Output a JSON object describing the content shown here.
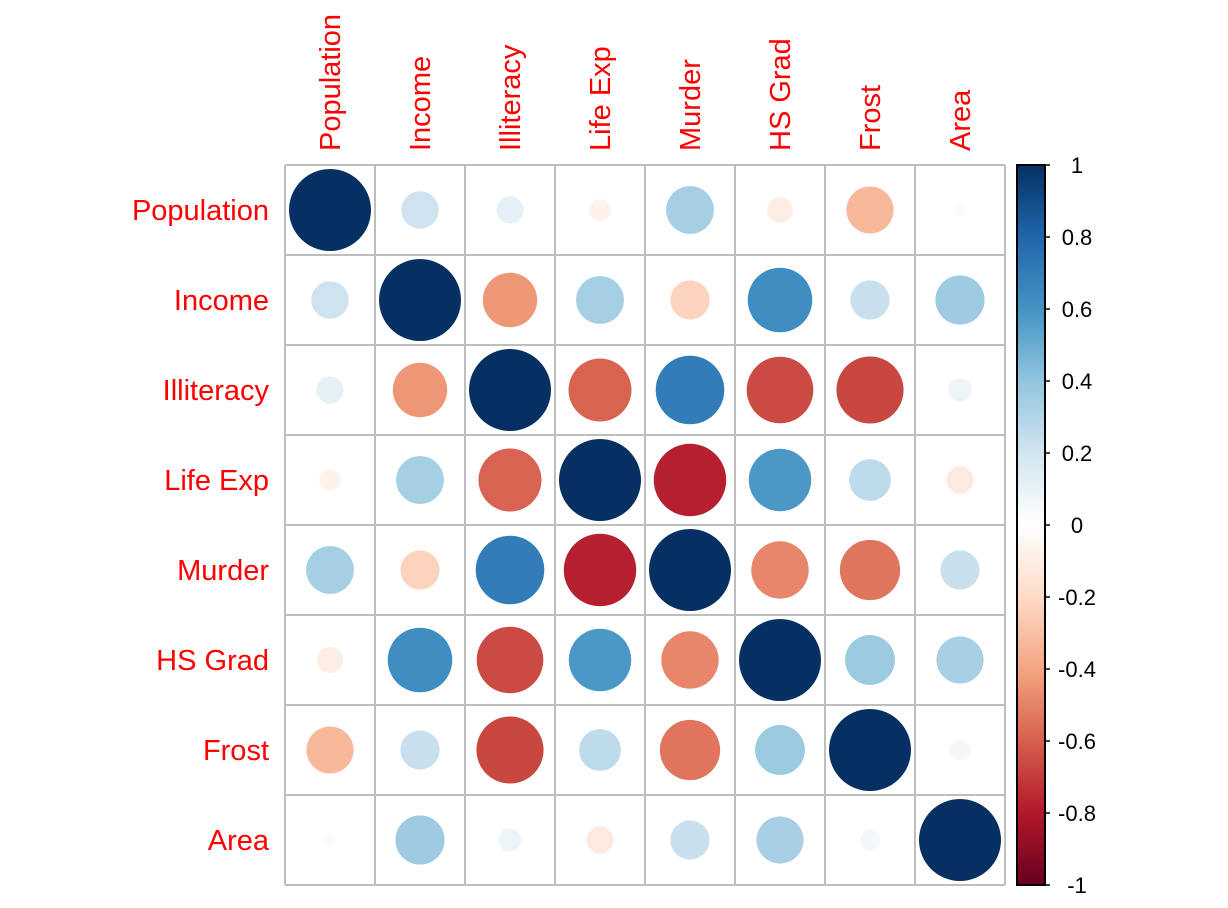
{
  "chart_data": {
    "type": "heatmap",
    "subtype": "correlation-circle",
    "title": "",
    "variables": [
      "Population",
      "Income",
      "Illiteracy",
      "Life Exp",
      "Murder",
      "HS Grad",
      "Frost",
      "Area"
    ],
    "matrix": [
      [
        1.0,
        0.21,
        0.11,
        -0.07,
        0.34,
        -0.1,
        -0.33,
        0.02
      ],
      [
        0.21,
        1.0,
        -0.44,
        0.34,
        -0.23,
        0.62,
        0.23,
        0.36
      ],
      [
        0.11,
        -0.44,
        1.0,
        -0.59,
        0.7,
        -0.66,
        -0.67,
        0.08
      ],
      [
        -0.07,
        0.34,
        -0.59,
        1.0,
        -0.78,
        0.58,
        0.26,
        -0.11
      ],
      [
        0.34,
        -0.23,
        0.7,
        -0.78,
        1.0,
        -0.49,
        -0.54,
        0.23
      ],
      [
        -0.1,
        0.62,
        -0.66,
        0.58,
        -0.49,
        1.0,
        0.37,
        0.33
      ],
      [
        -0.33,
        0.23,
        -0.67,
        0.26,
        -0.54,
        0.37,
        1.0,
        0.06
      ],
      [
        0.02,
        0.36,
        0.08,
        -0.11,
        0.23,
        0.33,
        0.06,
        1.0
      ]
    ],
    "colorbar": {
      "range": [
        -1,
        1
      ],
      "ticks": [
        "1",
        "0.8",
        "0.6",
        "0.4",
        "0.2",
        "0",
        "-0.2",
        "-0.4",
        "-0.6",
        "-0.8",
        "-1"
      ],
      "tick_values": [
        1,
        0.8,
        0.6,
        0.4,
        0.2,
        0,
        -0.2,
        -0.4,
        -0.6,
        -0.8,
        -1
      ],
      "palette": [
        "#67001F",
        "#B2182B",
        "#D6604D",
        "#F4A582",
        "#FDDBC7",
        "#FFFFFF",
        "#D1E5F0",
        "#92C5DE",
        "#4393C3",
        "#2166AC",
        "#053061"
      ],
      "placement": "right"
    },
    "label_color": "#FF0000",
    "grid_color": "#BEBEBE",
    "legend": "colorbar-right"
  }
}
